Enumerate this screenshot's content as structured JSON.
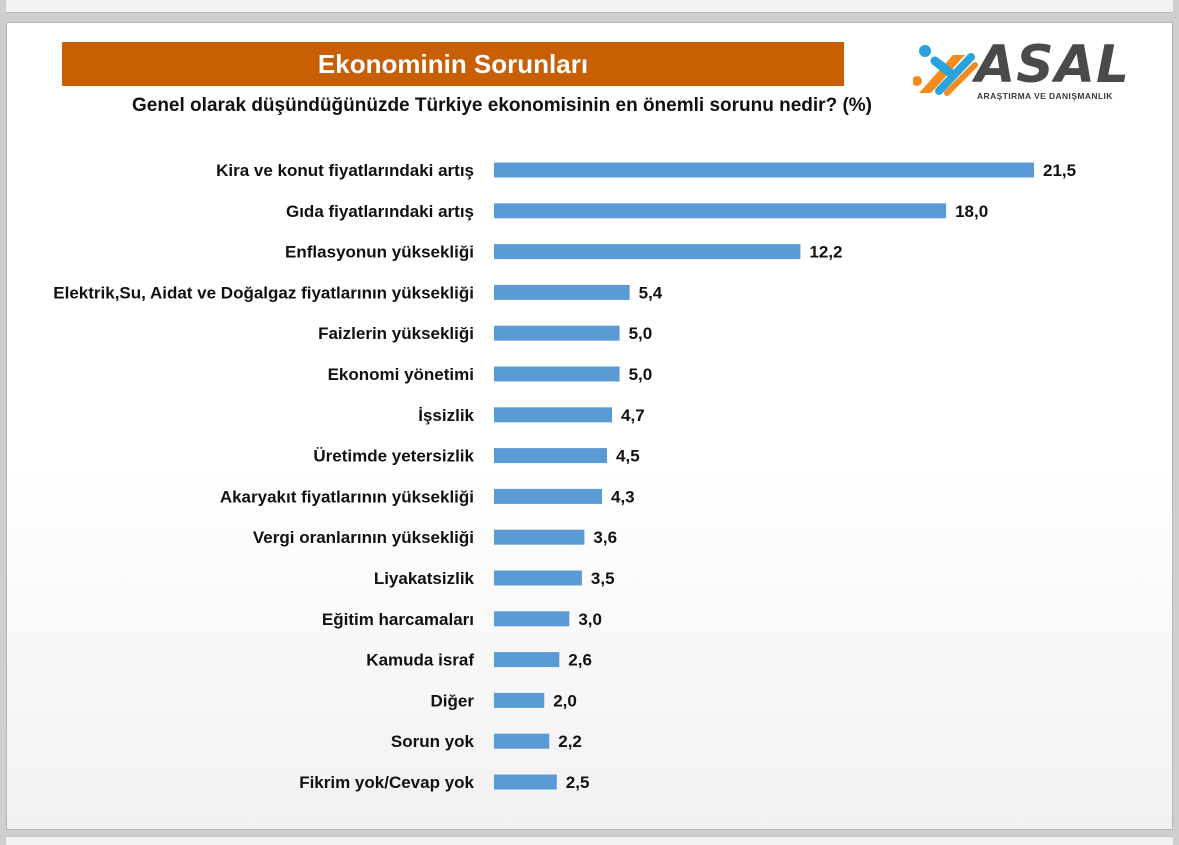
{
  "title": "Ekonominin Sorunları",
  "question": "Genel olarak düşündüğünüzde Türkiye ekonomisinin en önemli sorunu nedir? (%)",
  "logo": {
    "word": "ASAL",
    "subtitle": "ARAŞTIRMA VE DANIŞMANLIK",
    "colors": {
      "orange": "#f28c1f",
      "blue": "#2aa3dc",
      "text": "#4a4a4a"
    }
  },
  "colors": {
    "banner": "#c85f05",
    "bar": "#5b9bd5"
  },
  "chart_data": {
    "type": "bar",
    "orientation": "horizontal",
    "categories": [
      "Kira ve konut fiyatlarındaki artış",
      "Gıda fiyatlarındaki artış",
      "Enflasyonun yüksekliği",
      "Elektrik,Su, Aidat ve Doğalgaz fiyatlarının yüksekliği",
      "Faizlerin yüksekliği",
      "Ekonomi yönetimi",
      "İşsizlik",
      "Üretimde yetersizlik",
      "Akaryakıt fiyatlarının yüksekliği",
      "Vergi oranlarının yüksekliği",
      "Liyakatsizlik",
      "Eğitim harcamaları",
      "Kamuda israf",
      "Diğer",
      "Sorun yok",
      "Fikrim yok/Cevap yok"
    ],
    "values": [
      21.5,
      18.0,
      12.2,
      5.4,
      5.0,
      5.0,
      4.7,
      4.5,
      4.3,
      3.6,
      3.5,
      3.0,
      2.6,
      2.0,
      2.2,
      2.5
    ],
    "value_labels": [
      "21,5",
      "18,0",
      "12,2",
      "5,4",
      "5,0",
      "5,0",
      "4,7",
      "4,5",
      "4,3",
      "3,6",
      "3,5",
      "3,0",
      "2,6",
      "2,0",
      "2,2",
      "2,5"
    ],
    "xlim": [
      0,
      21.5
    ],
    "grid": false,
    "legend": "none"
  }
}
